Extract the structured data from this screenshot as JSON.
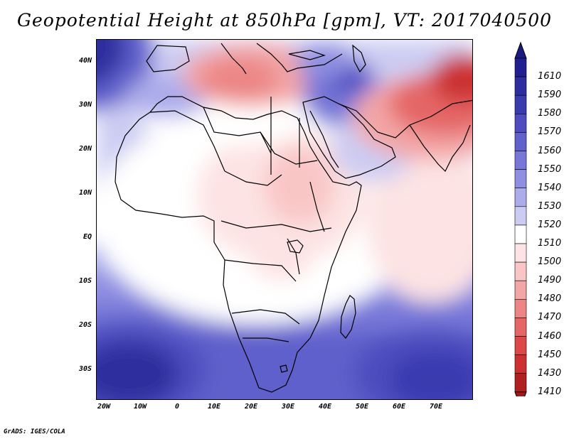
{
  "title": "Geopotential Height at 850hPa [gpm], VT: 2017040500",
  "credit": "GrADS: IGES/COLA",
  "map": {
    "lat_range": [
      -37,
      45
    ],
    "lon_range": [
      -22,
      80
    ],
    "lat_ticks": [
      {
        "value": 40,
        "label": "40N"
      },
      {
        "value": 30,
        "label": "30N"
      },
      {
        "value": 20,
        "label": "20N"
      },
      {
        "value": 10,
        "label": "10N"
      },
      {
        "value": 0,
        "label": "EQ"
      },
      {
        "value": -10,
        "label": "10S"
      },
      {
        "value": -20,
        "label": "20S"
      },
      {
        "value": -30,
        "label": "30S"
      }
    ],
    "lon_ticks": [
      {
        "value": -20,
        "label": "20W"
      },
      {
        "value": -10,
        "label": "10W"
      },
      {
        "value": 0,
        "label": "0"
      },
      {
        "value": 10,
        "label": "10E"
      },
      {
        "value": 20,
        "label": "20E"
      },
      {
        "value": 30,
        "label": "30E"
      },
      {
        "value": 40,
        "label": "40E"
      },
      {
        "value": 50,
        "label": "50E"
      },
      {
        "value": 60,
        "label": "60E"
      },
      {
        "value": 70,
        "label": "70E"
      }
    ]
  },
  "colorbar": {
    "levels": [
      {
        "label": "1610",
        "color": "#1f1f8f"
      },
      {
        "label": "1590",
        "color": "#2d2d9f"
      },
      {
        "label": "1580",
        "color": "#3b3bb0"
      },
      {
        "label": "1570",
        "color": "#4d4dbf"
      },
      {
        "label": "1560",
        "color": "#6161cc"
      },
      {
        "label": "1550",
        "color": "#7777d8"
      },
      {
        "label": "1540",
        "color": "#8f8fe2"
      },
      {
        "label": "1530",
        "color": "#acaceb"
      },
      {
        "label": "1520",
        "color": "#ccccf3"
      },
      {
        "label": "1510",
        "color": "#ffffff"
      },
      {
        "label": "1500",
        "color": "#fde3e3"
      },
      {
        "label": "1490",
        "color": "#f9c6c6"
      },
      {
        "label": "1480",
        "color": "#f3a6a6"
      },
      {
        "label": "1470",
        "color": "#ec8686"
      },
      {
        "label": "1460",
        "color": "#e56666"
      },
      {
        "label": "1450",
        "color": "#dc4848"
      },
      {
        "label": "1430",
        "color": "#cc3030"
      },
      {
        "label": "1410",
        "color": "#b02020"
      }
    ],
    "top_cap_color": "#1a1a80",
    "bottom_cap_color": "#a01818"
  }
}
